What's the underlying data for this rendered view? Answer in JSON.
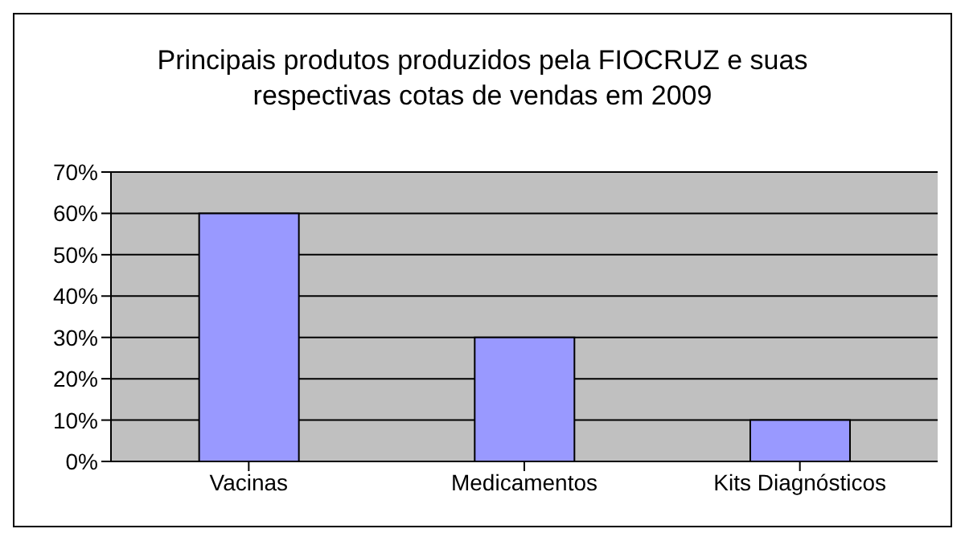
{
  "chart_data": {
    "type": "bar",
    "title": "Principais produtos produzidos pela FIOCRUZ e suas respectivas cotas de vendas em 2009",
    "categories": [
      "Vacinas",
      "Medicamentos",
      "Kits Diagnósticos"
    ],
    "values": [
      60,
      30,
      10
    ],
    "color": "#9999ff",
    "ylim": [
      0,
      70
    ],
    "yticks": [
      {
        "value": 0,
        "label": "0%"
      },
      {
        "value": 10,
        "label": "10%"
      },
      {
        "value": 20,
        "label": "20%"
      },
      {
        "value": 30,
        "label": "30%"
      },
      {
        "value": 40,
        "label": "40%"
      },
      {
        "value": 50,
        "label": "50%"
      },
      {
        "value": 60,
        "label": "60%"
      },
      {
        "value": 70,
        "label": "70%"
      }
    ],
    "grid": "y",
    "legend": false
  }
}
